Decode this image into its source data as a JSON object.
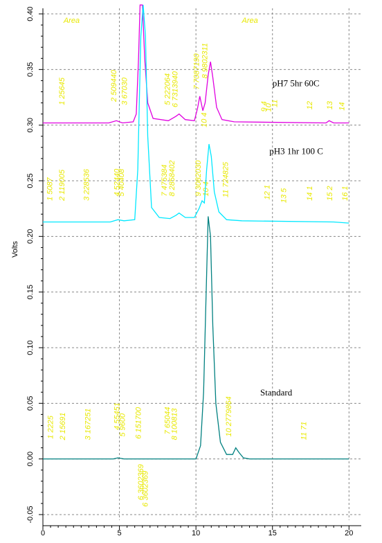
{
  "chart_data": {
    "type": "line",
    "title": "",
    "xlabel": "",
    "ylabel": "Volts",
    "xlim": [
      0,
      20.8
    ],
    "ylim": [
      -0.055,
      0.405
    ],
    "x_ticks": [
      0,
      5,
      10,
      15,
      20
    ],
    "y_ticks": [
      -0.05,
      0.0,
      0.05,
      0.1,
      0.15,
      0.2,
      0.25,
      0.3,
      0.35,
      0.4
    ],
    "y_tick_labels": [
      "-0.05",
      "0.00",
      "0.05",
      "0.10",
      "0.15",
      "0.20",
      "0.25",
      "0.30",
      "0.35",
      "0.40"
    ],
    "grid": true,
    "area_headers": [
      "Area",
      "Area"
    ],
    "series": [
      {
        "name": "pH7 5hr 60C",
        "color": "#e000e0",
        "baseline": 0.302,
        "points": [
          [
            0,
            0.302
          ],
          [
            4.3,
            0.302
          ],
          [
            4.8,
            0.304
          ],
          [
            5.2,
            0.302
          ],
          [
            5.9,
            0.303
          ],
          [
            6.1,
            0.31
          ],
          [
            6.25,
            0.36
          ],
          [
            6.35,
            0.43
          ],
          [
            6.5,
            0.42
          ],
          [
            6.65,
            0.36
          ],
          [
            6.85,
            0.32
          ],
          [
            7.2,
            0.306
          ],
          [
            8.2,
            0.304
          ],
          [
            8.7,
            0.308
          ],
          [
            8.9,
            0.31
          ],
          [
            9.3,
            0.305
          ],
          [
            9.9,
            0.304
          ],
          [
            10.1,
            0.315
          ],
          [
            10.25,
            0.326
          ],
          [
            10.45,
            0.313
          ],
          [
            10.6,
            0.32
          ],
          [
            10.8,
            0.345
          ],
          [
            10.95,
            0.357
          ],
          [
            11.1,
            0.343
          ],
          [
            11.35,
            0.316
          ],
          [
            11.7,
            0.305
          ],
          [
            12.5,
            0.303
          ],
          [
            18.5,
            0.302
          ],
          [
            18.7,
            0.304
          ],
          [
            19.0,
            0.302
          ],
          [
            20,
            0.302
          ]
        ],
        "peak_labels": [
          {
            "text": "1 25645",
            "x": 1.4,
            "y": 0.318
          },
          {
            "text": "2 509440",
            "x": 4.8,
            "y": 0.321
          },
          {
            "text": "3 67030",
            "x": 5.5,
            "y": 0.318
          },
          {
            "text": "5 222064",
            "x": 8.3,
            "y": 0.318
          },
          {
            "text": "6 7313940",
            "x": 8.8,
            "y": 0.316
          },
          {
            "text": "7 7087190",
            "x": 10.2,
            "y": 0.332
          },
          {
            "text": "8 9802311",
            "x": 10.75,
            "y": 0.342
          },
          {
            "text": "10 4",
            "x": 10.7,
            "y": 0.298
          },
          {
            "text": "9 4",
            "x": 14.6,
            "y": 0.312
          },
          {
            "text": "10",
            "x": 14.9,
            "y": 0.312
          },
          {
            "text": "11",
            "x": 15.3,
            "y": 0.316
          },
          {
            "text": "12",
            "x": 17.6,
            "y": 0.314
          },
          {
            "text": "13",
            "x": 18.9,
            "y": 0.314
          },
          {
            "text": "14",
            "x": 19.7,
            "y": 0.313
          }
        ]
      },
      {
        "name": "pH3 1hr 100 C",
        "color": "#00e8ff",
        "baseline": 0.213,
        "points": [
          [
            0,
            0.213
          ],
          [
            4.4,
            0.213
          ],
          [
            4.9,
            0.215
          ],
          [
            5.3,
            0.214
          ],
          [
            6.0,
            0.215
          ],
          [
            6.2,
            0.26
          ],
          [
            6.4,
            0.38
          ],
          [
            6.55,
            0.427
          ],
          [
            6.7,
            0.38
          ],
          [
            6.85,
            0.29
          ],
          [
            7.1,
            0.226
          ],
          [
            7.6,
            0.217
          ],
          [
            8.3,
            0.216
          ],
          [
            8.7,
            0.219
          ],
          [
            8.9,
            0.221
          ],
          [
            9.3,
            0.217
          ],
          [
            9.9,
            0.217
          ],
          [
            10.2,
            0.225
          ],
          [
            10.4,
            0.232
          ],
          [
            10.55,
            0.23
          ],
          [
            10.7,
            0.26
          ],
          [
            10.85,
            0.283
          ],
          [
            11.0,
            0.272
          ],
          [
            11.2,
            0.24
          ],
          [
            11.5,
            0.222
          ],
          [
            12.0,
            0.215
          ],
          [
            13,
            0.214
          ],
          [
            19,
            0.213
          ],
          [
            20,
            0.212
          ]
        ],
        "peak_labels": [
          {
            "text": "1 5087",
            "x": 0.6,
            "y": 0.232
          },
          {
            "text": "2 119005",
            "x": 1.4,
            "y": 0.232
          },
          {
            "text": "3 228536",
            "x": 3.0,
            "y": 0.232
          },
          {
            "text": "4 52440",
            "x": 5.0,
            "y": 0.236
          },
          {
            "text": "5 40408",
            "x": 5.3,
            "y": 0.236
          },
          {
            "text": "7 475384",
            "x": 8.1,
            "y": 0.236
          },
          {
            "text": "8 2858402",
            "x": 8.6,
            "y": 0.236
          },
          {
            "text": "9 3082030",
            "x": 10.3,
            "y": 0.236
          },
          {
            "text": "10 4",
            "x": 10.8,
            "y": 0.236
          },
          {
            "text": "11 724825",
            "x": 12.1,
            "y": 0.235
          },
          {
            "text": "12 1",
            "x": 14.8,
            "y": 0.233
          },
          {
            "text": "13 5",
            "x": 15.9,
            "y": 0.23
          },
          {
            "text": "14 1",
            "x": 17.6,
            "y": 0.232
          },
          {
            "text": "15 2",
            "x": 18.9,
            "y": 0.232
          },
          {
            "text": "16 1",
            "x": 19.9,
            "y": 0.232
          }
        ]
      },
      {
        "name": "Standard",
        "color": "#008080",
        "baseline": 0.0,
        "points": [
          [
            0,
            0.0
          ],
          [
            4.6,
            0.0
          ],
          [
            4.9,
            0.001
          ],
          [
            5.3,
            0.0
          ],
          [
            10.0,
            0.0
          ],
          [
            10.3,
            0.012
          ],
          [
            10.5,
            0.06
          ],
          [
            10.65,
            0.14
          ],
          [
            10.8,
            0.218
          ],
          [
            10.95,
            0.2
          ],
          [
            11.1,
            0.12
          ],
          [
            11.3,
            0.05
          ],
          [
            11.6,
            0.015
          ],
          [
            12.0,
            0.004
          ],
          [
            12.4,
            0.004
          ],
          [
            12.6,
            0.01
          ],
          [
            12.8,
            0.006
          ],
          [
            13.1,
            0.001
          ],
          [
            13.5,
            0.0
          ],
          [
            20,
            0.0
          ]
        ],
        "peak_labels": [
          {
            "text": "1 2225",
            "x": 0.65,
            "y": 0.018
          },
          {
            "text": "2 15691",
            "x": 1.45,
            "y": 0.017
          },
          {
            "text": "3 167251",
            "x": 3.1,
            "y": 0.017
          },
          {
            "text": "4 55451",
            "x": 5.0,
            "y": 0.026
          },
          {
            "text": "5 9600",
            "x": 5.35,
            "y": 0.02
          },
          {
            "text": "6 151700",
            "x": 6.4,
            "y": 0.018
          },
          {
            "text": "7 65044",
            "x": 8.3,
            "y": 0.022
          },
          {
            "text": "8 100813",
            "x": 8.75,
            "y": 0.017
          },
          {
            "text": "10 2779864",
            "x": 12.3,
            "y": 0.02
          },
          {
            "text": "11 71",
            "x": 17.2,
            "y": 0.017
          },
          {
            "text": "6 3602369",
            "x": 6.55,
            "y": -0.037
          },
          {
            "text": "6 3602369",
            "x": 6.85,
            "y": -0.043
          }
        ]
      }
    ],
    "series_label_positions": [
      {
        "x": 15.0,
        "y": 0.335
      },
      {
        "x": 14.8,
        "y": 0.274
      },
      {
        "x": 14.2,
        "y": 0.057
      }
    ],
    "area_header_positions": [
      {
        "x": 1.35,
        "y": 0.392
      },
      {
        "x": 13.0,
        "y": 0.392
      }
    ]
  }
}
